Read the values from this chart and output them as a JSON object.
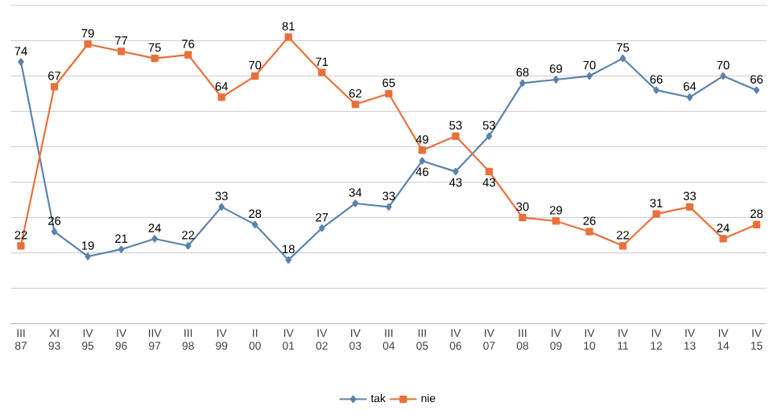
{
  "chart_data": {
    "type": "line",
    "categories": [
      "III 87",
      "XI 93",
      "IV 95",
      "IV 96",
      "IIV 97",
      "III 98",
      "IV 99",
      "II 00",
      "IV 01",
      "IV 02",
      "IV 03",
      "III 04",
      "III 05",
      "IV 06",
      "IV 07",
      "III 08",
      "IV 09",
      "IV 10",
      "IV 11",
      "IV 12",
      "IV 13",
      "IV 14",
      "IV 15"
    ],
    "series": [
      {
        "name": "tak",
        "color": "#5b82ad",
        "marker": "diamond",
        "values": [
          74,
          26,
          19,
          21,
          24,
          22,
          33,
          28,
          18,
          27,
          34,
          33,
          46,
          43,
          53,
          68,
          69,
          70,
          75,
          66,
          64,
          70,
          66
        ]
      },
      {
        "name": "nie",
        "color": "#e8703a",
        "marker": "square",
        "values": [
          22,
          67,
          79,
          77,
          75,
          76,
          64,
          70,
          81,
          71,
          62,
          65,
          49,
          53,
          43,
          30,
          29,
          26,
          22,
          31,
          33,
          24,
          28
        ]
      }
    ],
    "ylim": [
      0,
      90
    ],
    "yticks": [
      {
        "value": 0,
        "label": null
      },
      {
        "value": 10,
        "label": null
      },
      {
        "value": 20,
        "label": null
      },
      {
        "value": 30,
        "label": null
      },
      {
        "value": 40,
        "label": null
      },
      {
        "value": 50,
        "label": null
      },
      {
        "value": 60,
        "label": null
      },
      {
        "value": 70,
        "label": null
      },
      {
        "value": 80,
        "label": null
      },
      {
        "value": 90,
        "label": null
      }
    ],
    "grid": "y",
    "tick_labels": "x",
    "data_labels": true,
    "legend": "bottom"
  }
}
